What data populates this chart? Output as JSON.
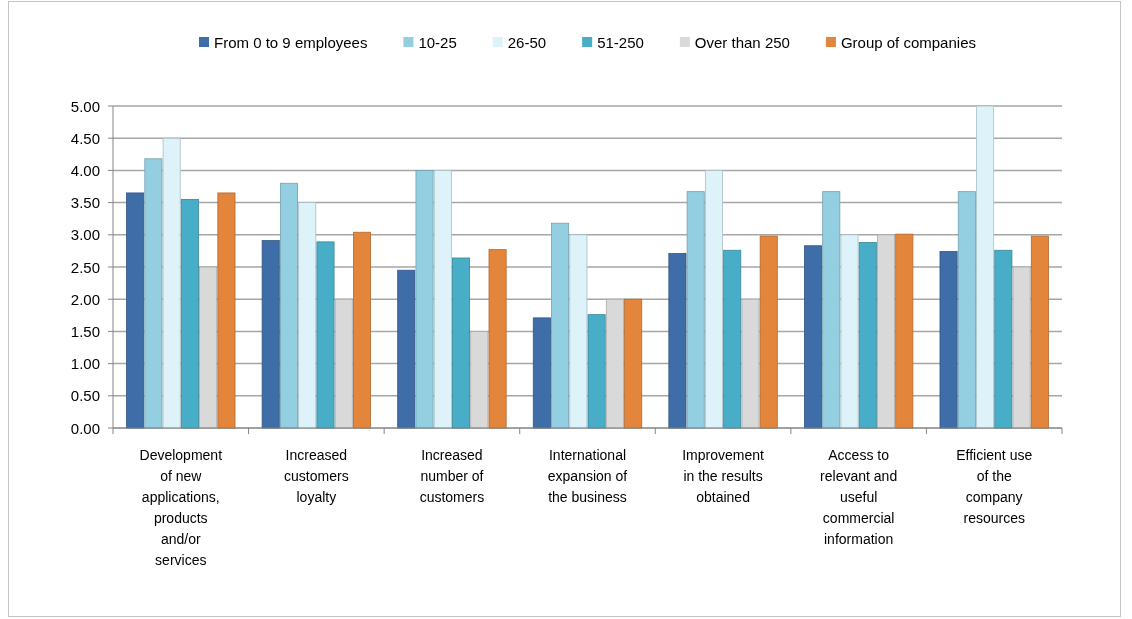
{
  "chart_data": {
    "type": "bar",
    "categories": [
      "Development of new applications, products and/or services",
      "Increased customers loyalty",
      "Increased number of customers",
      "International expansion of the business",
      "Improvement in the results obtained",
      "Access to relevant and useful commercial information",
      "Efficient use of the company resources"
    ],
    "series": [
      {
        "name": "From 0 to 9 employees",
        "color": "#3f6da8",
        "values": [
          3.65,
          2.91,
          2.45,
          1.71,
          2.71,
          2.83,
          2.74
        ]
      },
      {
        "name": "10-25",
        "color": "#93cfe0",
        "values": [
          4.18,
          3.8,
          4.0,
          3.18,
          3.67,
          3.67,
          3.67
        ]
      },
      {
        "name": "26-50",
        "color": "#ddf2f9",
        "values": [
          4.5,
          3.5,
          4.0,
          3.0,
          4.0,
          3.0,
          5.0
        ]
      },
      {
        "name": "51-250",
        "color": "#48adc7",
        "values": [
          3.55,
          2.89,
          2.64,
          1.76,
          2.76,
          2.88,
          2.76
        ]
      },
      {
        "name": "Over than 250",
        "color": "#d9d9d9",
        "values": [
          2.5,
          2.0,
          1.5,
          2.0,
          2.0,
          3.0,
          2.5
        ]
      },
      {
        "name": "Group of companies",
        "color": "#e4853c",
        "values": [
          3.65,
          3.04,
          2.77,
          2.0,
          2.98,
          3.01,
          2.98
        ]
      }
    ],
    "ylim": [
      0,
      5
    ],
    "yticks": [
      {
        "value": 0,
        "label": "0.00"
      },
      {
        "value": 0.5,
        "label": "0.50"
      },
      {
        "value": 1,
        "label": "1.00"
      },
      {
        "value": 1.5,
        "label": "1.50"
      },
      {
        "value": 2,
        "label": "2.00"
      },
      {
        "value": 2.5,
        "label": "2.50"
      },
      {
        "value": 3,
        "label": "3.00"
      },
      {
        "value": 3.5,
        "label": "3.50"
      },
      {
        "value": 4,
        "label": "4.00"
      },
      {
        "value": 4.5,
        "label": "4.50"
      },
      {
        "value": 5,
        "label": "5.00"
      }
    ],
    "grid": "y",
    "legend": "top"
  }
}
